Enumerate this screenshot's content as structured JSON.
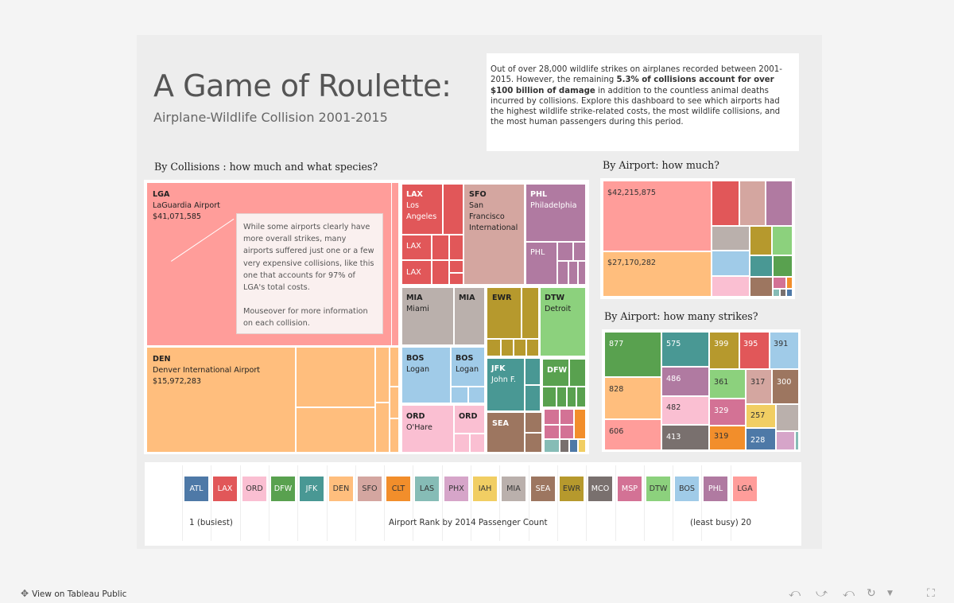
{
  "colors": {
    "LGA": "#ff9d9a",
    "DEN": "#ffbe7d",
    "LAX": "#e15759",
    "SFO": "#d4a6a0",
    "PHL": "#b07aa1",
    "MIA": "#bab0ac",
    "EWR": "#b6992d",
    "DTW": "#8cd17d",
    "BOS": "#a0cbe8",
    "JFK": "#499894",
    "ORD": "#fabfd2",
    "SEA": "#9d7660",
    "DFW": "#59a14f",
    "MCO": "#79706e",
    "MSP": "#d37295",
    "ATL": "#4e79a7",
    "CLT": "#f28e2b",
    "LAS": "#86bcb6",
    "PHX": "#fabfd2",
    "IAH": "#f1ce63",
    "dashboard_bg": "#ededed"
  },
  "header": {
    "title": "A Game of Roulette:",
    "subtitle": "Airplane-Wildlife Collision 2001-2015",
    "intro_a": "Out of over 28,000 wildlife strikes on airplanes recorded between 2001-2015. However, the remaining ",
    "intro_b": "5.3% of collisions account for over $100 billion of damage",
    "intro_c": " in addition to the countless animal deaths incurred by collisions. Explore this dashboard to see which airports had the highest wildlife strike-related costs, the most wildlife collisions, and the most human passengers during this period."
  },
  "collisions": {
    "heading": "By Collisions : how much and what species?",
    "tiles": [
      {
        "code": "LGA",
        "name": "LaGuardia Airport",
        "value": "$41,071,585"
      },
      {
        "code": "DEN",
        "name": "Denver International Airport",
        "value": "$15,972,283"
      },
      {
        "code": "LAX",
        "name": "Los Angeles",
        "name2": "",
        "extra1": "LAX",
        "extra2": "LAX"
      },
      {
        "code": "SFO",
        "name": "San Francisco",
        "name2": "International"
      },
      {
        "code": "PHL",
        "name": "Philadelphia",
        "extra1": "PHL"
      },
      {
        "code": "MIA",
        "name": "Miami",
        "extra1": "MIA"
      },
      {
        "code": "EWR"
      },
      {
        "code": "DTW",
        "name": "Detroit"
      },
      {
        "code": "BOS",
        "name": "Logan",
        "extra1": "BOS",
        "extra1_name": "Logan"
      },
      {
        "code": "JFK",
        "name": "John F."
      },
      {
        "code": "DFW"
      },
      {
        "code": "ORD",
        "name": "O'Hare",
        "extra1": "ORD"
      },
      {
        "code": "SEA"
      }
    ],
    "note_p1": "While some airports clearly have more overall strikes, many airports suffered just one or a few very expensive collisions, like this one that accounts for 97% of LGA's total costs.",
    "note_p2": "Mouseover for more information on each collision."
  },
  "by_cost": {
    "heading": "By Airport: how much?",
    "labels": [
      "$42,215,875",
      "$27,170,282"
    ]
  },
  "by_strikes": {
    "heading": "By Airport: how many strikes?",
    "values": [
      "877",
      "828",
      "606",
      "575",
      "486",
      "482",
      "413",
      "399",
      "395",
      "391",
      "361",
      "329",
      "319",
      "317",
      "300",
      "257",
      "228"
    ]
  },
  "legend": {
    "codes": [
      "ATL",
      "LAX",
      "ORD",
      "DFW",
      "JFK",
      "DEN",
      "SFO",
      "CLT",
      "LAS",
      "PHX",
      "IAH",
      "MIA",
      "SEA",
      "EWR",
      "MCO",
      "MSP",
      "DTW",
      "BOS",
      "PHL",
      "LGA"
    ],
    "axis_left": "1 (busiest)",
    "axis_title": "Airport Rank by 2014 Passenger Count",
    "axis_right": "(least busy) 20"
  },
  "footer": {
    "link": "View on Tableau Public"
  }
}
